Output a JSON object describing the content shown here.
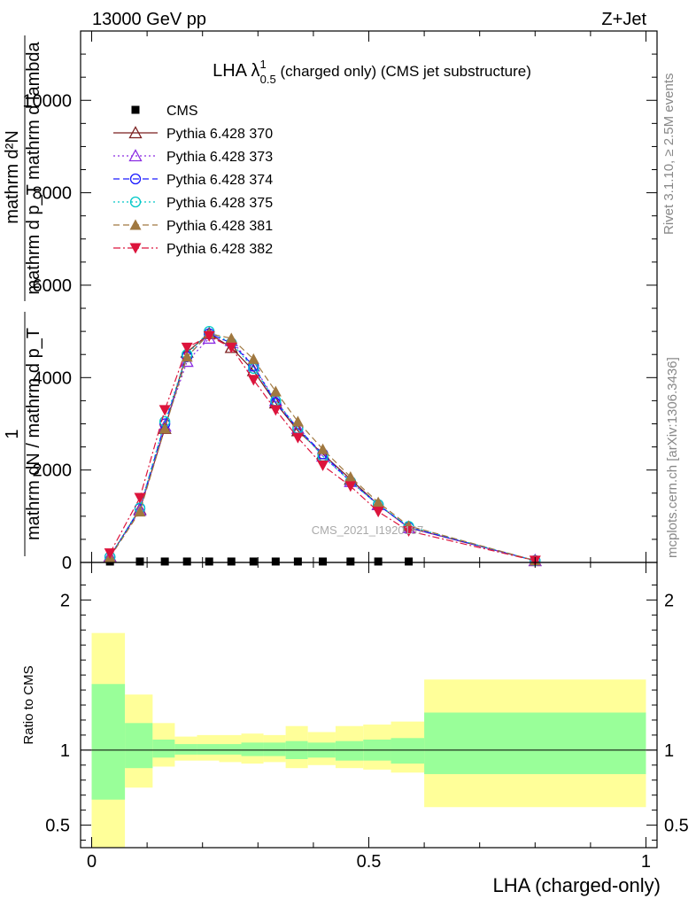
{
  "header": {
    "left": "13000 GeV pp",
    "right": "Z+Jet"
  },
  "side_labels": {
    "rivet": "Rivet 3.1.10, ≥ 2.5M events",
    "mcplots": "mcplots.cern.ch [arXiv:1306.3436]"
  },
  "watermark": "CMS_2021_I1920187",
  "chart_data": [
    {
      "type": "line",
      "title": {
        "main": "LHA λ",
        "sup": "1",
        "sub": "0.5",
        "rest": " (charged only) (CMS jet substructure)"
      },
      "ylabel": {
        "numerator": "mathrm d²N",
        "denominator": "mathrm d p_T mathrm d lambda",
        "prefix": "1",
        "prefix_den": "mathrm dN / mathrm d p_T"
      },
      "ylim": [
        0,
        11500
      ],
      "xlim": [
        -0.02,
        1.02
      ],
      "yticks": [
        0,
        2000,
        4000,
        6000,
        8000,
        10000
      ],
      "ytick_labels": [
        "0",
        "2000",
        "4000",
        "6000",
        "8000",
        "10000"
      ],
      "legend_placement": "top-left",
      "x": [
        0.033,
        0.087,
        0.132,
        0.172,
        0.212,
        0.252,
        0.292,
        0.332,
        0.372,
        0.417,
        0.467,
        0.517,
        0.572,
        0.8
      ],
      "series": [
        {
          "name": "CMS",
          "color": "#000000",
          "marker": "square",
          "dash": "none",
          "values": [
            20,
            20,
            20,
            20,
            20,
            20,
            20,
            20,
            20,
            20,
            20,
            20,
            20,
            null
          ]
        },
        {
          "name": "Pythia 6.428 370",
          "color": "#7a1f1f",
          "marker": "triangle-open",
          "dash": "solid",
          "values": [
            130,
            1150,
            2900,
            4550,
            4950,
            4650,
            4150,
            3450,
            2850,
            2350,
            1800,
            1250,
            750,
            40
          ]
        },
        {
          "name": "Pythia 6.428 373",
          "color": "#8a2be2",
          "marker": "triangle-open",
          "dash": "dotted",
          "values": [
            120,
            1130,
            2950,
            4350,
            4850,
            4800,
            4250,
            3500,
            2900,
            2300,
            1750,
            1250,
            750,
            40
          ]
        },
        {
          "name": "Pythia 6.428 374",
          "color": "#1a1aff",
          "marker": "circle-open",
          "dash": "dashed",
          "values": [
            120,
            1170,
            3000,
            4450,
            4950,
            4750,
            4250,
            3450,
            2900,
            2350,
            1750,
            1250,
            760,
            40
          ]
        },
        {
          "name": "Pythia 6.428 375",
          "color": "#00c8c8",
          "marker": "circle-open",
          "dash": "dotted",
          "values": [
            120,
            1180,
            3050,
            4500,
            5000,
            4750,
            4200,
            3500,
            2900,
            2300,
            1750,
            1250,
            780,
            40
          ]
        },
        {
          "name": "Pythia 6.428 381",
          "color": "#a07840",
          "marker": "triangle-filled",
          "dash": "dashed",
          "values": [
            110,
            1100,
            2900,
            4450,
            4950,
            4850,
            4400,
            3700,
            3050,
            2450,
            1850,
            1300,
            790,
            40
          ]
        },
        {
          "name": "Pythia 6.428 382",
          "color": "#dc143c",
          "marker": "triangle-down-filled",
          "dash": "dashdot",
          "values": [
            200,
            1400,
            3300,
            4650,
            4900,
            4650,
            3950,
            3300,
            2700,
            2100,
            1650,
            1100,
            680,
            40
          ]
        }
      ]
    },
    {
      "type": "area",
      "ylabel": "Ratio to CMS",
      "xlabel": "LHA (charged-only)",
      "ylim": [
        0.35,
        2.25
      ],
      "yticks": [
        0.5,
        1,
        2
      ],
      "ytick_labels": [
        "0.5",
        "1",
        "2"
      ],
      "xticks": [
        0,
        0.5,
        1
      ],
      "xtick_labels": [
        "0",
        "0.5",
        "1"
      ],
      "bins": [
        {
          "lo": 0.0,
          "hi": 0.06,
          "inner": [
            0.67,
            1.44
          ],
          "outer": [
            0.35,
            1.78
          ]
        },
        {
          "lo": 0.06,
          "hi": 0.11,
          "inner": [
            0.88,
            1.18
          ],
          "outer": [
            0.75,
            1.37
          ]
        },
        {
          "lo": 0.11,
          "hi": 0.15,
          "inner": [
            0.95,
            1.07
          ],
          "outer": [
            0.89,
            1.18
          ]
        },
        {
          "lo": 0.15,
          "hi": 0.19,
          "inner": [
            0.97,
            1.04
          ],
          "outer": [
            0.93,
            1.09
          ]
        },
        {
          "lo": 0.19,
          "hi": 0.23,
          "inner": [
            0.97,
            1.04
          ],
          "outer": [
            0.93,
            1.1
          ]
        },
        {
          "lo": 0.23,
          "hi": 0.27,
          "inner": [
            0.97,
            1.04
          ],
          "outer": [
            0.92,
            1.1
          ]
        },
        {
          "lo": 0.27,
          "hi": 0.31,
          "inner": [
            0.96,
            1.05
          ],
          "outer": [
            0.91,
            1.11
          ]
        },
        {
          "lo": 0.31,
          "hi": 0.35,
          "inner": [
            0.96,
            1.05
          ],
          "outer": [
            0.92,
            1.1
          ]
        },
        {
          "lo": 0.35,
          "hi": 0.39,
          "inner": [
            0.94,
            1.06
          ],
          "outer": [
            0.88,
            1.16
          ]
        },
        {
          "lo": 0.39,
          "hi": 0.44,
          "inner": [
            0.95,
            1.05
          ],
          "outer": [
            0.9,
            1.12
          ]
        },
        {
          "lo": 0.44,
          "hi": 0.49,
          "inner": [
            0.93,
            1.06
          ],
          "outer": [
            0.88,
            1.16
          ]
        },
        {
          "lo": 0.49,
          "hi": 0.54,
          "inner": [
            0.93,
            1.07
          ],
          "outer": [
            0.87,
            1.17
          ]
        },
        {
          "lo": 0.54,
          "hi": 0.6,
          "inner": [
            0.91,
            1.08
          ],
          "outer": [
            0.85,
            1.19
          ]
        },
        {
          "lo": 0.6,
          "hi": 1.0,
          "inner": [
            0.84,
            1.25
          ],
          "outer": [
            0.62,
            1.47
          ]
        }
      ],
      "reference": 1
    }
  ]
}
